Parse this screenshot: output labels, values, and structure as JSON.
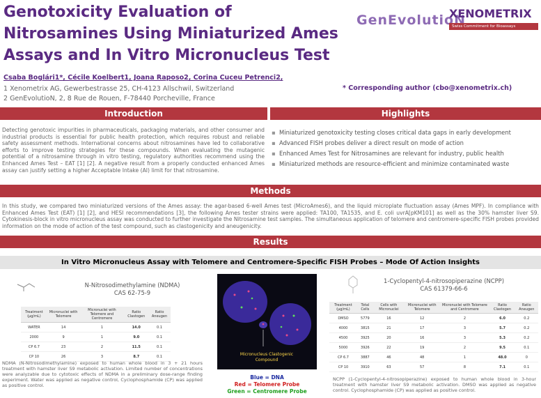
{
  "header": {
    "title_lines": [
      "Genotoxicity Evaluation of",
      "Nitrosamines Using Miniaturized Ames",
      "Assays and In Vitro Micronucleus Test"
    ],
    "logo_genevolution": "GenEvolutioN",
    "logo_xenometrix": "XENOMETRIX",
    "logo_xenometrix_tagline": "Swiss Commitment for Bioassays",
    "authors": "Csaba Boglári1*, Cécile Koelbert1, Joana Raposo2, Corina Cuceu Petrenci2,",
    "affiliations": [
      "1 Xenometrix AG, Gewerbestrasse 25, CH-4123 Allschwil, Switzerland",
      "2 GenEvolutioN, 2, 8 Rue de Rouen, F-78440 Porcheville, France"
    ],
    "corresponding": "* Corresponding author (cbo@xenometrix.ch)"
  },
  "introduction": {
    "heading": "Introduction",
    "text": "Detecting genotoxic impurities in pharmaceuticals, packaging materials, and other consumer and industrial products is essential for public health protection, which requires robust and reliable safety assessment methods. International concerns about nitrosamines have led to collaborative efforts to improve testing strategies for these compounds. When evaluating the mutagenic potential of a nitrosamine through in vitro testing, regulatory authorities recommend using the Enhanced Ames Test – EAT [1] [2]. A negative result from a properly conducted enhanced Ames assay can justify setting a higher Acceptable Intake (AI) limit for that nitrosamine."
  },
  "highlights": {
    "heading": "Highlights",
    "items": [
      "Miniaturized genotoxicity testing closes critical data gaps in early development",
      "Advanced FISH probes deliver a direct result on mode of action",
      "Enhanced Ames Test for Nitrosamines are relevant for industry, public health",
      "Miniaturized methods are resource-efficient and minimize contaminated waste"
    ]
  },
  "methods": {
    "heading": "Methods",
    "text": "In this study, we compared two miniaturized versions of the Ames assay: the agar-based 6-well Ames test (MicroAmes6), and the liquid microplate fluctuation assay (Ames MPF). In compliance with Enhanced Ames Test (EAT) [1] [2], and HESI recommendations [3], the following Ames tester strains were applied: TA100, TA1535, and E. coli uvrA[pKM101] as well as the 30% hamster liver S9. Cytokinesis-block in vitro micronucleus assay was conducted to further investigate the Nitrosamine test samples. The simultaneous application of telomere and centromere-specific FISH probes provided information on the mode of action of the test compound, such as clastogenicity and aneugenicity."
  },
  "results": {
    "heading": "Results",
    "banner": "In Vitro Micronucleus Assay with Telomere and Centromere-Specific FISH Probes – Mode Of Action Insights",
    "ndma": {
      "name": "N-Nitrosodimethylamine (NDMA)",
      "cas": "CAS 62-75-9",
      "table": {
        "columns": [
          "Treatment (µg/mL)",
          "Micronuclei with Telomere",
          "Micronuclei with Telomere and Centromere",
          "Ratio Clastogen",
          "Ratio Aneugen"
        ],
        "rows": [
          [
            "WATER",
            "14",
            "1",
            "14.0",
            "0.1"
          ],
          [
            "2000",
            "9",
            "1",
            "9.0",
            "0.1"
          ],
          [
            "CP 6.7",
            "23",
            "2",
            "11.5",
            "0.1"
          ],
          [
            "CP 10",
            "26",
            "3",
            "8.7",
            "0.1"
          ]
        ]
      },
      "caption": "NDMA (N-Nitrosodimethylamine) exposed to human whole blood in 3 + 21 hours treatment with hamster liver S9 metabolic activation. Limited number of concentrations were analyzable due to cytotoxic effects of NDMA in a preliminary dose-range finding experiment. Water was applied as negative control, Cyclophosphamide (CP) was applied as positive control."
    },
    "image_label": "Micronucleus Clastogenic Compound",
    "legend": [
      "Blue = DNA",
      "Red = Telomere Probe",
      "Green = Centromere Probe"
    ],
    "ncpp": {
      "name": "1-Cyclopentyl-4-nitrosopiperazine (NCPP)",
      "cas": "CAS 61379-66-6",
      "table": {
        "columns": [
          "Treatment (µg/mL)",
          "Total Cells",
          "Cells with Micronuclei",
          "Micronuclei with Telomere",
          "Micronuclei with Telomere and Centromere",
          "Ratio Clastogen",
          "Ratio Aneugen"
        ],
        "rows": [
          [
            "DMSO",
            "5779",
            "16",
            "12",
            "2",
            "6.0",
            "0.2"
          ],
          [
            "4000",
            "3815",
            "21",
            "17",
            "3",
            "5.7",
            "0.2"
          ],
          [
            "4500",
            "3925",
            "20",
            "16",
            "3",
            "5.3",
            "0.2"
          ],
          [
            "5000",
            "3926",
            "22",
            "19",
            "2",
            "9.5",
            "0.1"
          ],
          [
            "CP 6.7",
            "3887",
            "46",
            "48",
            "1",
            "48.0",
            "0"
          ],
          [
            "CP 10",
            "3910",
            "63",
            "57",
            "8",
            "7.1",
            "0.1"
          ]
        ]
      },
      "caption": "NCPP (1-Cyclopentyl-4-nitrosopiperazine) exposed to human whole blood in 3-hour treatment with hamster liver S9 metabolic activation. DMSO was applied as negative control. Cyclophosphamide (CP) was applied as positive control."
    }
  }
}
